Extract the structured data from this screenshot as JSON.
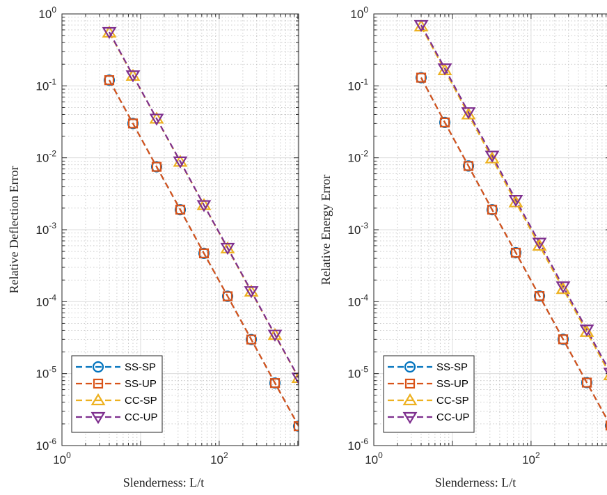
{
  "chart_data": [
    {
      "type": "line",
      "x_scale": "log",
      "y_scale": "log",
      "xlim": [
        1,
        1024
      ],
      "ylim": [
        1e-06,
        1
      ],
      "x_ticks": [
        {
          "value": 1,
          "base": "10",
          "exp": "0"
        },
        {
          "value": 100,
          "base": "10",
          "exp": "2"
        }
      ],
      "y_ticks": [
        {
          "value": 1,
          "base": "10",
          "exp": "0"
        },
        {
          "value": 0.1,
          "base": "10",
          "exp": "-1"
        },
        {
          "value": 0.01,
          "base": "10",
          "exp": "-2"
        },
        {
          "value": 0.001,
          "base": "10",
          "exp": "-3"
        },
        {
          "value": 0.0001,
          "base": "10",
          "exp": "-4"
        },
        {
          "value": 1e-05,
          "base": "10",
          "exp": "-5"
        },
        {
          "value": 1e-06,
          "base": "10",
          "exp": "-6"
        }
      ],
      "grid": true,
      "minor_grid": true,
      "xlabel": "Slenderness:  L/t",
      "ylabel": "Relative Deflection Error",
      "legend_position": "bottom-left",
      "x": [
        4,
        8,
        16,
        32,
        64,
        128,
        256,
        512,
        1024
      ],
      "series": [
        {
          "name": "SS-SP",
          "color": "#0072BD",
          "marker": "circle",
          "values": [
            0.12,
            0.03,
            0.0075,
            0.0019,
            0.00047,
            0.000119,
            2.98e-05,
            7.4e-06,
            1.86e-06
          ]
        },
        {
          "name": "SS-UP",
          "color": "#D95319",
          "marker": "square",
          "values": [
            0.12,
            0.03,
            0.0075,
            0.0019,
            0.00047,
            0.000119,
            2.98e-05,
            7.4e-06,
            1.86e-06
          ]
        },
        {
          "name": "CC-SP",
          "color": "#EDB120",
          "marker": "triangle-up",
          "values": [
            0.55,
            0.138,
            0.035,
            0.0088,
            0.0022,
            0.00055,
            0.000138,
            3.45e-05,
            8.7e-06
          ]
        },
        {
          "name": "CC-UP",
          "color": "#7E2F8E",
          "marker": "triangle-down",
          "values": [
            0.56,
            0.14,
            0.035,
            0.0089,
            0.0022,
            0.00056,
            0.00014,
            3.48e-05,
            8.8e-06
          ]
        }
      ]
    },
    {
      "type": "line",
      "x_scale": "log",
      "y_scale": "log",
      "xlim": [
        1,
        1024
      ],
      "ylim": [
        1e-06,
        1
      ],
      "x_ticks": [
        {
          "value": 1,
          "base": "10",
          "exp": "0"
        },
        {
          "value": 100,
          "base": "10",
          "exp": "2"
        }
      ],
      "y_ticks": [
        {
          "value": 1,
          "base": "10",
          "exp": "0"
        },
        {
          "value": 0.1,
          "base": "10",
          "exp": "-1"
        },
        {
          "value": 0.01,
          "base": "10",
          "exp": "-2"
        },
        {
          "value": 0.001,
          "base": "10",
          "exp": "-3"
        },
        {
          "value": 0.0001,
          "base": "10",
          "exp": "-4"
        },
        {
          "value": 1e-05,
          "base": "10",
          "exp": "-5"
        },
        {
          "value": 1e-06,
          "base": "10",
          "exp": "-6"
        }
      ],
      "grid": true,
      "minor_grid": true,
      "xlabel": "Slenderness:  L/t",
      "ylabel": "Relative Energy Error",
      "legend_position": "bottom-left",
      "x": [
        4,
        8,
        16,
        32,
        64,
        128,
        256,
        512,
        1024
      ],
      "series": [
        {
          "name": "SS-SP",
          "color": "#0072BD",
          "marker": "circle",
          "values": [
            0.13,
            0.031,
            0.0077,
            0.0019,
            0.00048,
            0.00012,
            3e-05,
            7.5e-06,
            1.9e-06
          ]
        },
        {
          "name": "SS-UP",
          "color": "#D95319",
          "marker": "square",
          "values": [
            0.13,
            0.031,
            0.0077,
            0.0019,
            0.00048,
            0.00012,
            3e-05,
            7.5e-06,
            1.9e-06
          ]
        },
        {
          "name": "CC-SP",
          "color": "#EDB120",
          "marker": "triangle-up",
          "values": [
            0.67,
            0.165,
            0.04,
            0.0098,
            0.0024,
            0.0006,
            0.00015,
            3.8e-05,
            9.5e-06
          ]
        },
        {
          "name": "CC-UP",
          "color": "#7E2F8E",
          "marker": "triangle-down",
          "values": [
            0.7,
            0.175,
            0.043,
            0.0107,
            0.0026,
            0.00066,
            0.000163,
            4.1e-05,
            1.03e-05
          ]
        }
      ]
    }
  ]
}
